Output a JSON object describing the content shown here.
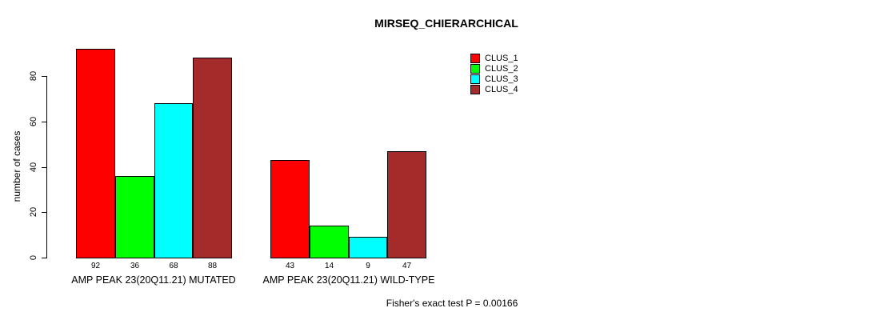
{
  "title": "MIRSEQ_CHIERARCHICAL",
  "y_axis": {
    "label": "number of cases",
    "ticks": [
      0,
      20,
      40,
      60,
      80
    ]
  },
  "legend": {
    "items": [
      {
        "label": "CLUS_1",
        "color": "#FF0000"
      },
      {
        "label": "CLUS_2",
        "color": "#00FF00"
      },
      {
        "label": "CLUS_3",
        "color": "#00FFFF"
      },
      {
        "label": "CLUS_4",
        "color": "#A52A2A"
      }
    ]
  },
  "footer": "Fisher's exact test P = 0.00166",
  "chart_data": {
    "type": "bar",
    "title": "MIRSEQ_CHIERARCHICAL",
    "xlabel": "",
    "ylabel": "number of cases",
    "ylim": [
      0,
      92
    ],
    "yticks": [
      0,
      20,
      40,
      60,
      80
    ],
    "grid": false,
    "legend_position": "top-right",
    "categories": [
      "AMP PEAK 23(20Q11.21) MUTATED",
      "AMP PEAK 23(20Q11.21) WILD-TYPE"
    ],
    "series": [
      {
        "name": "CLUS_1",
        "color": "#FF0000",
        "values": [
          92,
          43
        ]
      },
      {
        "name": "CLUS_2",
        "color": "#00FF00",
        "values": [
          36,
          14
        ]
      },
      {
        "name": "CLUS_3",
        "color": "#00FFFF",
        "values": [
          68,
          9
        ]
      },
      {
        "name": "CLUS_4",
        "color": "#A52A2A",
        "values": [
          88,
          47
        ]
      }
    ],
    "bar_value_labels": [
      [
        92,
        36,
        68,
        88
      ],
      [
        43,
        14,
        9,
        47
      ]
    ],
    "annotation": "Fisher's exact test P = 0.00166"
  }
}
